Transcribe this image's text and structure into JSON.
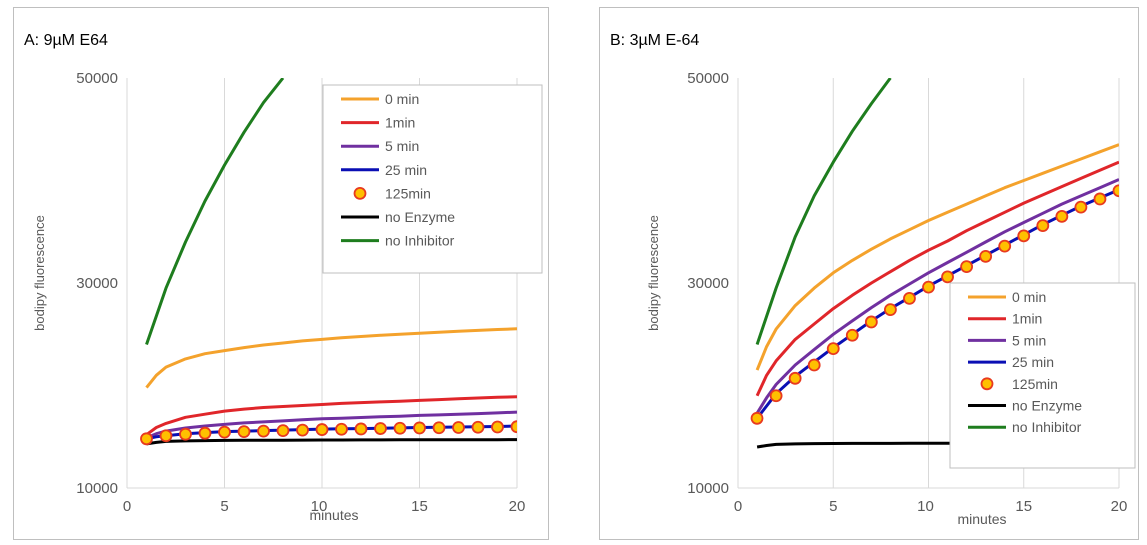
{
  "chart_data": [
    {
      "type": "line",
      "title": "A: 9µM E64",
      "xlabel": "minutes",
      "ylabel": "bodipy fluorescence",
      "xlim": [
        0,
        20
      ],
      "ylim": [
        10000,
        50000
      ],
      "xticks": [
        0,
        5,
        10,
        15,
        20
      ],
      "yticks": [
        10000,
        30000,
        50000
      ],
      "grid": "vertical",
      "legend_position": "top-right",
      "series": [
        {
          "name": "0 min",
          "color": "#f4a22c",
          "marker": "none",
          "x": [
            1,
            1.5,
            2,
            3,
            4,
            5,
            6,
            7,
            8,
            9,
            10,
            11,
            12,
            13,
            14,
            15,
            16,
            17,
            18,
            19,
            20
          ],
          "y": [
            19800,
            21000,
            21800,
            22600,
            23100,
            23400,
            23700,
            23950,
            24150,
            24350,
            24500,
            24650,
            24780,
            24900,
            25000,
            25100,
            25200,
            25300,
            25380,
            25460,
            25530
          ]
        },
        {
          "name": "1min",
          "color": "#e0262a",
          "marker": "none",
          "x": [
            1,
            1.5,
            2,
            3,
            4,
            5,
            6,
            7,
            8,
            9,
            10,
            11,
            12,
            13,
            14,
            15,
            16,
            17,
            18,
            19,
            20
          ],
          "y": [
            15200,
            15900,
            16300,
            16900,
            17200,
            17500,
            17700,
            17850,
            17950,
            18050,
            18150,
            18250,
            18330,
            18400,
            18470,
            18550,
            18620,
            18700,
            18780,
            18850,
            18900
          ]
        },
        {
          "name": "5 min",
          "color": "#7030a0",
          "marker": "none",
          "x": [
            1,
            1.5,
            2,
            3,
            4,
            5,
            6,
            7,
            8,
            9,
            10,
            11,
            12,
            13,
            14,
            15,
            16,
            17,
            18,
            19,
            20
          ],
          "y": [
            14900,
            15300,
            15550,
            15850,
            16050,
            16200,
            16350,
            16450,
            16550,
            16650,
            16750,
            16800,
            16880,
            16950,
            17000,
            17080,
            17130,
            17200,
            17260,
            17330,
            17400
          ]
        },
        {
          "name": "25 min",
          "color": "#0a0fb4",
          "marker": "none",
          "x": [
            1,
            1.5,
            2,
            3,
            4,
            5,
            6,
            7,
            8,
            9,
            10,
            11,
            12,
            13,
            14,
            15,
            16,
            17,
            18,
            19,
            20
          ],
          "y": [
            14800,
            15000,
            15100,
            15300,
            15400,
            15500,
            15550,
            15600,
            15650,
            15700,
            15750,
            15780,
            15800,
            15830,
            15860,
            15900,
            15920,
            15950,
            15980,
            16000,
            16050
          ]
        },
        {
          "name": "125min",
          "color": "#f5a623",
          "marker": "circle",
          "x": [
            1,
            2,
            3,
            4,
            5,
            6,
            7,
            8,
            9,
            10,
            11,
            12,
            13,
            14,
            15,
            16,
            17,
            18,
            19,
            20
          ],
          "y": [
            14800,
            15100,
            15250,
            15350,
            15450,
            15500,
            15550,
            15600,
            15650,
            15700,
            15730,
            15760,
            15800,
            15830,
            15860,
            15880,
            15900,
            15930,
            15950,
            15980
          ]
        },
        {
          "name": "no Enzyme",
          "color": "#000000",
          "marker": "none",
          "x": [
            1,
            1.5,
            2,
            3,
            4,
            5,
            6,
            7,
            8,
            9,
            10,
            11,
            12,
            13,
            14,
            15,
            16,
            17,
            18,
            19,
            20
          ],
          "y": [
            14300,
            14450,
            14550,
            14600,
            14620,
            14640,
            14650,
            14660,
            14660,
            14670,
            14680,
            14680,
            14690,
            14690,
            14700,
            14700,
            14700,
            14700,
            14710,
            14710,
            14720
          ]
        },
        {
          "name": "no Inhibitor",
          "color": "#1e7d1e",
          "marker": "none",
          "x": [
            1,
            2,
            3,
            4,
            5,
            6,
            7,
            8
          ],
          "y": [
            24000,
            29500,
            34000,
            38000,
            41500,
            44700,
            47600,
            50000
          ]
        }
      ]
    },
    {
      "type": "line",
      "title": "B: 3µM E-64",
      "xlabel": "minutes",
      "ylabel": "bodipy fluorescence",
      "xlim": [
        0,
        20
      ],
      "ylim": [
        10000,
        50000
      ],
      "xticks": [
        0,
        5,
        10,
        15,
        20
      ],
      "yticks": [
        10000,
        30000,
        50000
      ],
      "grid": "vertical",
      "legend_position": "bottom-right",
      "series": [
        {
          "name": "0 min",
          "color": "#f4a22c",
          "marker": "none",
          "x": [
            1,
            1.5,
            2,
            3,
            4,
            5,
            6,
            7,
            8,
            9,
            10,
            11,
            12,
            13,
            14,
            15,
            16,
            17,
            18,
            19,
            20
          ],
          "y": [
            21500,
            23800,
            25500,
            27800,
            29500,
            31000,
            32200,
            33300,
            34300,
            35200,
            36100,
            36900,
            37700,
            38500,
            39300,
            40000,
            40700,
            41400,
            42100,
            42800,
            43500
          ]
        },
        {
          "name": "1min",
          "color": "#e0262a",
          "marker": "none",
          "x": [
            1,
            1.5,
            2,
            3,
            4,
            5,
            6,
            7,
            8,
            9,
            10,
            11,
            12,
            13,
            14,
            15,
            16,
            17,
            18,
            19,
            20
          ],
          "y": [
            19000,
            21000,
            22400,
            24500,
            26000,
            27500,
            28800,
            30000,
            31100,
            32200,
            33200,
            34100,
            35100,
            36000,
            36900,
            37800,
            38600,
            39400,
            40200,
            41000,
            41800
          ]
        },
        {
          "name": "5 min",
          "color": "#7030a0",
          "marker": "none",
          "x": [
            1,
            1.5,
            2,
            3,
            4,
            5,
            6,
            7,
            8,
            9,
            10,
            11,
            12,
            13,
            14,
            15,
            16,
            17,
            18,
            19,
            20
          ],
          "y": [
            17300,
            18800,
            20100,
            22000,
            23500,
            25000,
            26300,
            27600,
            28800,
            29900,
            31000,
            32000,
            33000,
            34000,
            35000,
            35900,
            36800,
            37700,
            38500,
            39300,
            40100
          ]
        },
        {
          "name": "25 min",
          "color": "#0a0fb4",
          "marker": "none",
          "x": [
            1,
            1.5,
            2,
            3,
            4,
            5,
            6,
            7,
            8,
            9,
            10,
            11,
            12,
            13,
            14,
            15,
            16,
            17,
            18,
            19,
            20
          ],
          "y": [
            16800,
            18000,
            19200,
            20900,
            22300,
            23700,
            25000,
            26300,
            27500,
            28600,
            29700,
            30700,
            31700,
            32700,
            33700,
            34700,
            35700,
            36600,
            37500,
            38300,
            39100
          ]
        },
        {
          "name": "125min",
          "color": "#f5a623",
          "marker": "circle",
          "x": [
            1,
            2,
            3,
            4,
            5,
            6,
            7,
            8,
            9,
            10,
            11,
            12,
            13,
            14,
            15,
            16,
            17,
            18,
            19,
            20
          ],
          "y": [
            16800,
            19000,
            20700,
            22000,
            23600,
            24900,
            26200,
            27400,
            28500,
            29600,
            30600,
            31600,
            32600,
            33600,
            34600,
            35600,
            36500,
            37400,
            38200,
            39000
          ]
        },
        {
          "name": "no Enzyme",
          "color": "#000000",
          "marker": "none",
          "x": [
            1,
            1.5,
            2,
            3,
            4,
            5,
            6,
            7,
            8,
            9,
            10,
            11,
            12,
            13,
            14,
            15,
            16,
            17,
            18,
            19,
            20
          ],
          "y": [
            14000,
            14150,
            14250,
            14300,
            14330,
            14340,
            14350,
            14350,
            14350,
            14360,
            14360,
            14360,
            14370,
            14370,
            14370,
            14380,
            14380,
            14390,
            14400,
            14400,
            14400
          ]
        },
        {
          "name": "no Inhibitor",
          "color": "#1e7d1e",
          "marker": "none",
          "x": [
            1,
            2,
            3,
            4,
            5,
            6,
            7,
            8
          ],
          "y": [
            24000,
            29500,
            34500,
            38500,
            41800,
            44800,
            47500,
            50000
          ]
        }
      ]
    }
  ]
}
